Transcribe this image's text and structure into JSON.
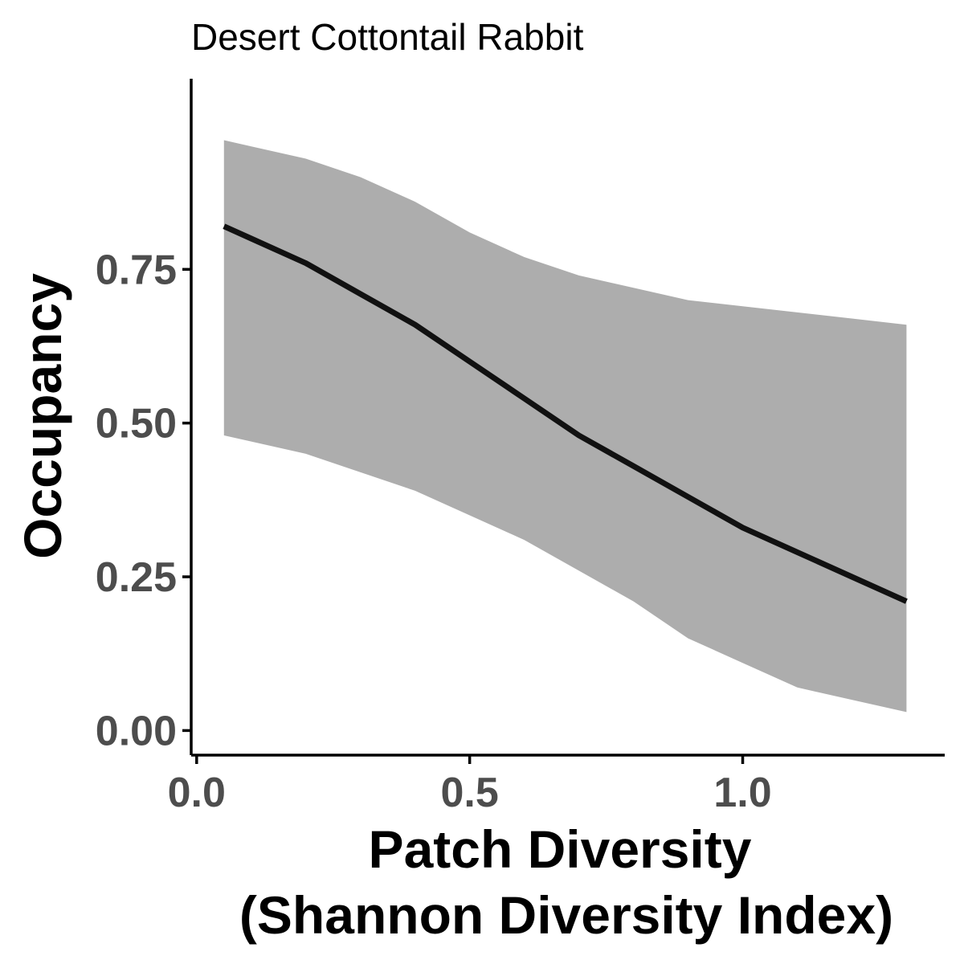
{
  "chart_data": {
    "type": "line",
    "title": "Desert Cottontail Rabbit",
    "xlabel_lines": [
      "Patch Diversity",
      "(Shannon Diversity Index)"
    ],
    "ylabel": "Occupancy",
    "xlim": [
      -0.01,
      1.37
    ],
    "ylim": [
      -0.04,
      1.06
    ],
    "x_ticks": [
      0.0,
      0.5,
      1.0
    ],
    "x_tick_labels": [
      "0.0",
      "0.5",
      "1.0"
    ],
    "y_ticks": [
      0.0,
      0.25,
      0.5,
      0.75
    ],
    "y_tick_labels": [
      "0.00",
      "0.25",
      "0.50",
      "0.75"
    ],
    "grid": false,
    "legend": "none",
    "series": [
      {
        "x": [
          0.05,
          0.1,
          0.2,
          0.3,
          0.4,
          0.5,
          0.6,
          0.7,
          0.8,
          0.9,
          1.0,
          1.1,
          1.2,
          1.3
        ],
        "y": [
          0.82,
          0.8,
          0.76,
          0.71,
          0.66,
          0.6,
          0.54,
          0.48,
          0.43,
          0.38,
          0.33,
          0.29,
          0.25,
          0.21
        ],
        "lower": [
          0.48,
          0.47,
          0.45,
          0.42,
          0.39,
          0.35,
          0.31,
          0.26,
          0.21,
          0.15,
          0.11,
          0.07,
          0.05,
          0.03
        ],
        "upper": [
          0.96,
          0.95,
          0.93,
          0.9,
          0.86,
          0.81,
          0.77,
          0.74,
          0.72,
          0.7,
          0.69,
          0.68,
          0.67,
          0.66
        ]
      }
    ],
    "colors": {
      "ribbon": "#adadad",
      "line": "#111111",
      "axis": "#000000",
      "tick_text": "#4d4d4d"
    }
  }
}
